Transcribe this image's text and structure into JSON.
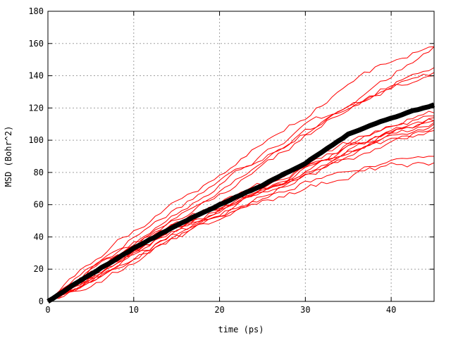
{
  "chart_data": {
    "type": "line",
    "title": "",
    "xlabel": "time (ps)",
    "ylabel": "MSD (Bohr^2)",
    "xlim": [
      0,
      45
    ],
    "ylim": [
      0,
      180
    ],
    "xticks": [
      0,
      10,
      20,
      30,
      40
    ],
    "yticks": [
      0,
      20,
      40,
      60,
      80,
      100,
      120,
      140,
      160,
      180
    ],
    "grid": true,
    "legend": "none",
    "colors": {
      "traces": "#ff0000",
      "mean": "#000000"
    },
    "traces_style": "individual trajectories (red, thin)",
    "mean_style": "average (black, thick)",
    "x": [
      0,
      5,
      10,
      15,
      20,
      25,
      30,
      35,
      40,
      45
    ],
    "series": [
      {
        "values": [
          0,
          22,
          40,
          58,
          75,
          90,
          105,
          120,
          135,
          145
        ]
      },
      {
        "values": [
          0,
          24,
          44,
          62,
          78,
          98,
          115,
          135,
          150,
          158
        ]
      },
      {
        "values": [
          0,
          20,
          36,
          52,
          68,
          86,
          104,
          122,
          140,
          158
        ]
      },
      {
        "values": [
          0,
          18,
          34,
          50,
          66,
          84,
          102,
          120,
          135,
          140
        ]
      },
      {
        "values": [
          0,
          19,
          36,
          54,
          72,
          90,
          108,
          122,
          132,
          142
        ]
      },
      {
        "values": [
          0,
          16,
          32,
          46,
          60,
          72,
          86,
          98,
          108,
          115
        ]
      },
      {
        "values": [
          0,
          17,
          33,
          48,
          60,
          72,
          82,
          95,
          104,
          112
        ]
      },
      {
        "values": [
          0,
          14,
          30,
          44,
          56,
          68,
          80,
          92,
          102,
          110
        ]
      },
      {
        "values": [
          0,
          15,
          31,
          46,
          58,
          70,
          82,
          96,
          105,
          114
        ]
      },
      {
        "values": [
          0,
          13,
          28,
          42,
          55,
          68,
          78,
          90,
          100,
          108
        ]
      },
      {
        "values": [
          0,
          12,
          26,
          40,
          54,
          66,
          78,
          88,
          98,
          106
        ]
      },
      {
        "values": [
          0,
          14,
          30,
          44,
          57,
          69,
          80,
          92,
          103,
          111
        ]
      },
      {
        "values": [
          0,
          12,
          28,
          42,
          54,
          64,
          74,
          82,
          86,
          90
        ]
      },
      {
        "values": [
          0,
          10,
          24,
          38,
          52,
          62,
          70,
          78,
          84,
          86
        ]
      },
      {
        "values": [
          0,
          16,
          33,
          47,
          57,
          70,
          82,
          94,
          106,
          112
        ]
      },
      {
        "values": [
          0,
          15,
          31,
          45,
          58,
          71,
          84,
          97,
          110,
          117
        ]
      }
    ],
    "mean": {
      "values": [
        0,
        17,
        33,
        47,
        60,
        72,
        86,
        104,
        114,
        122
      ]
    }
  }
}
